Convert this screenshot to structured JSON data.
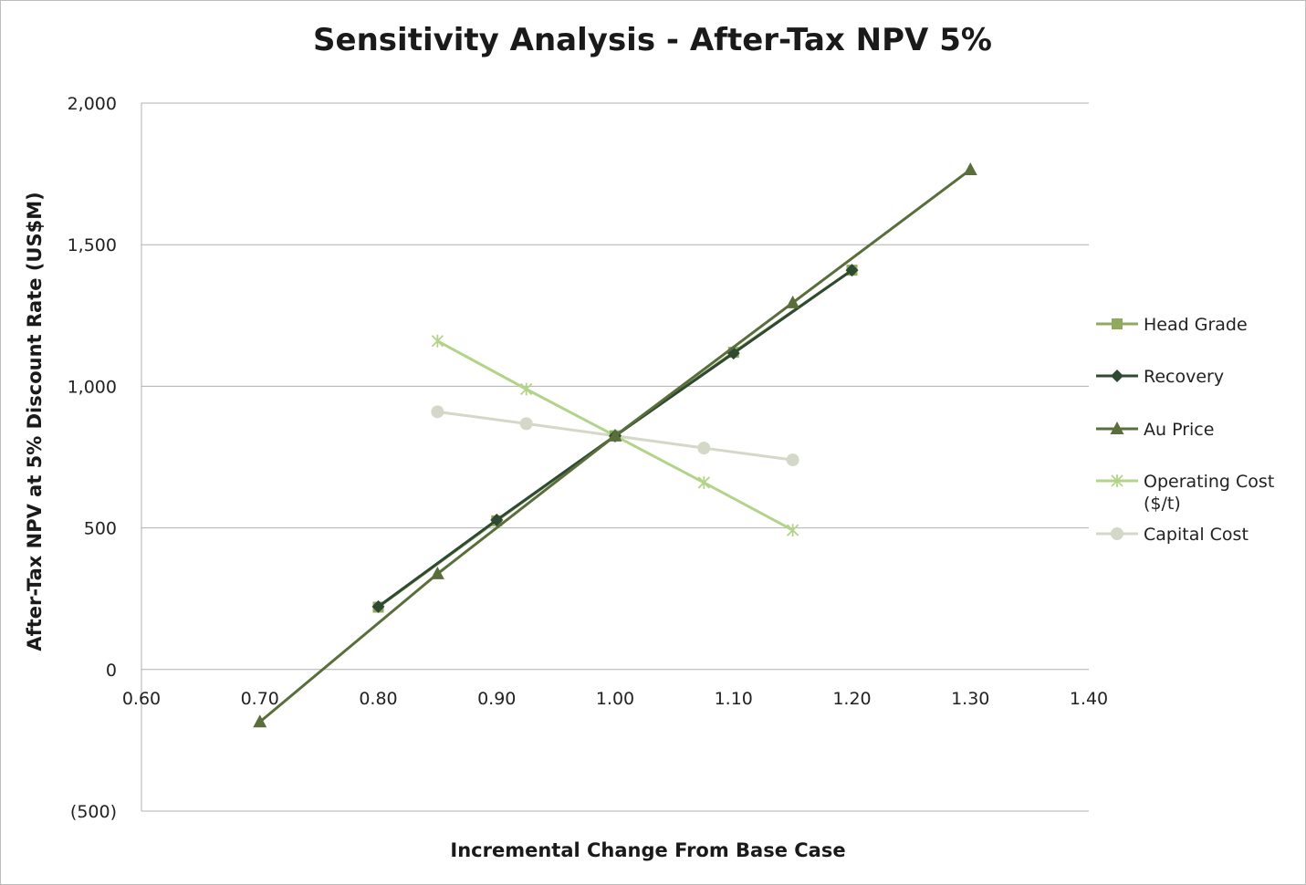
{
  "colors": {
    "background": "#ffffff",
    "grid": "#b0b0b0",
    "negative_tick": "#c00000"
  },
  "chart_data": {
    "type": "line",
    "title": "Sensitivity Analysis - After-Tax NPV 5%",
    "xlabel": "Incremental Change From Base Case",
    "ylabel": "After-Tax NPV at 5% Discount Rate (US$M)",
    "xlim": [
      0.6,
      1.4
    ],
    "ylim": [
      -500,
      2000
    ],
    "x_ticks": [
      0.6,
      0.7,
      0.8,
      0.9,
      1.0,
      1.1,
      1.2,
      1.3,
      1.4
    ],
    "x_tick_labels": [
      "0.60",
      "0.70",
      "0.80",
      "0.90",
      "1.00",
      "1.10",
      "1.20",
      "1.30",
      "1.40"
    ],
    "y_ticks": [
      2000,
      1500,
      1000,
      500,
      0,
      -500
    ],
    "y_tick_labels": [
      "2,000",
      "1,500",
      "1,000",
      "500",
      "0",
      "(500)"
    ],
    "grid": "horizontal",
    "legend_position": "right",
    "series": [
      {
        "name": "Head Grade",
        "color": "#8faa5e",
        "marker": "square",
        "x": [
          0.8,
          0.9,
          1.0,
          1.1,
          1.2
        ],
        "y": [
          220,
          525,
          825,
          1120,
          1410
        ]
      },
      {
        "name": "Recovery",
        "color": "#2e4a32",
        "marker": "diamond",
        "x": [
          0.8,
          0.9,
          1.0,
          1.1,
          1.2
        ],
        "y": [
          222,
          528,
          825,
          1117,
          1410
        ]
      },
      {
        "name": "Au Price",
        "color": "#5a6e3c",
        "marker": "triangle",
        "x": [
          0.7,
          0.85,
          1.0,
          1.15,
          1.3
        ],
        "y": [
          -185,
          338,
          825,
          1295,
          1765
        ]
      },
      {
        "name": "Operating Cost ($/t)",
        "legend_lines": [
          "Operating Cost",
          "($/t)"
        ],
        "color": "#b2d48a",
        "marker": "star",
        "x": [
          0.85,
          0.925,
          1.0,
          1.075,
          1.15
        ],
        "y": [
          1160,
          990,
          825,
          660,
          492
        ]
      },
      {
        "name": "Capital Cost",
        "color": "#d4d8c8",
        "marker": "circle",
        "x": [
          0.85,
          0.925,
          1.0,
          1.075,
          1.15
        ],
        "y": [
          910,
          868,
          825,
          782,
          740
        ]
      }
    ]
  }
}
